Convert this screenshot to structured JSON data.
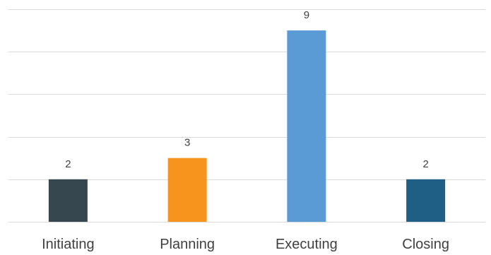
{
  "chart_data": {
    "type": "bar",
    "categories": [
      "Initiating",
      "Planning",
      "Executing",
      "Closing"
    ],
    "values": [
      2,
      3,
      9,
      2
    ],
    "colors": [
      "#37474f",
      "#f7941d",
      "#5b9bd5",
      "#1f5f86"
    ],
    "ylim": [
      0,
      10
    ],
    "grid": true,
    "legend": "none",
    "show_data_labels": true
  }
}
